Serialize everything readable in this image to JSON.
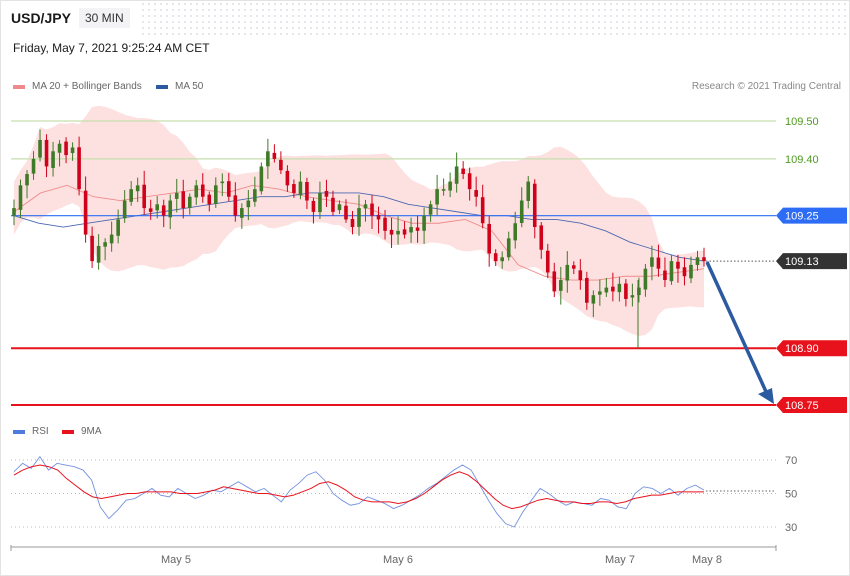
{
  "header": {
    "symbol": "USD/JPY",
    "timeframe": "30 MIN",
    "timestamp": "Friday, May 7, 2021 9:25:24 AM CET"
  },
  "legend": {
    "ma20_label": "MA 20 + Bollinger Bands",
    "ma50_label": "MA 50",
    "rsi_label": "RSI",
    "rsi_ma_label": "9MA",
    "credit": "Research © 2021 Trading Central"
  },
  "colors": {
    "up": "#3e7a27",
    "down": "#d0021b",
    "bollinger_fill": "#fde1e1",
    "ma20": "#f08a8a",
    "ma50": "#4a68b0",
    "resistance_line": "#c6dfae",
    "resistance_text": "#4f9a1f",
    "pivot": "#2d6cf5",
    "support": "#e8121c",
    "current": "#333333",
    "arrow": "#2c5aa0",
    "rsi": "#7391e0",
    "rsi_ma": "#e8121c"
  },
  "chart_data": [
    {
      "type": "candlestick",
      "y_range": [
        108.68,
        109.57
      ],
      "x_ticks": [
        "May 5",
        "May 6",
        "May 7",
        "May 8"
      ],
      "levels": [
        {
          "label": "109.50",
          "value": 109.5,
          "kind": "resistance"
        },
        {
          "label": "109.40",
          "value": 109.4,
          "kind": "resistance"
        },
        {
          "label": "109.25",
          "value": 109.25,
          "kind": "pivot"
        },
        {
          "label": "109.13",
          "value": 109.13,
          "kind": "current"
        },
        {
          "label": "108.90",
          "value": 108.9,
          "kind": "support"
        },
        {
          "label": "108.75",
          "value": 108.75,
          "kind": "support"
        }
      ],
      "close_series": [
        109.27,
        109.33,
        109.36,
        109.4,
        109.45,
        109.38,
        109.42,
        109.44,
        109.41,
        109.43,
        109.32,
        109.2,
        109.13,
        109.17,
        109.18,
        109.2,
        109.24,
        109.29,
        109.32,
        109.33,
        109.27,
        109.26,
        109.28,
        109.25,
        109.29,
        109.31,
        109.27,
        109.3,
        109.33,
        109.3,
        109.28,
        109.33,
        109.34,
        109.3,
        109.25,
        109.27,
        109.29,
        109.32,
        109.38,
        109.42,
        109.4,
        109.37,
        109.33,
        109.31,
        109.34,
        109.29,
        109.26,
        109.31,
        109.3,
        109.26,
        109.28,
        109.24,
        109.22,
        109.27,
        109.28,
        109.25,
        109.24,
        109.21,
        109.2,
        109.21,
        109.2,
        109.22,
        109.21,
        109.25,
        109.28,
        109.32,
        109.32,
        109.34,
        109.38,
        109.36,
        109.32,
        109.3,
        109.23,
        109.15,
        109.13,
        109.14,
        109.19,
        109.23,
        109.29,
        109.34,
        109.22,
        109.16,
        109.1,
        109.05,
        109.08,
        109.12,
        109.11,
        109.08,
        109.02,
        109.04,
        109.05,
        109.06,
        109.05,
        109.07,
        109.03,
        109.04,
        109.06,
        109.11,
        109.14,
        109.11,
        109.08,
        109.13,
        109.11,
        109.09,
        109.12,
        109.14,
        109.13
      ],
      "note": "Forecast arrow from 109.13 toward 108.75",
      "ma20_values": [
        109.26,
        109.31,
        109.33,
        109.3,
        109.29,
        109.3,
        109.31,
        109.32,
        109.31,
        109.33,
        109.32,
        109.3,
        109.29,
        109.28,
        109.25,
        109.23,
        109.23,
        109.24,
        109.21,
        109.12,
        109.09,
        109.08,
        109.08,
        109.09,
        109.09,
        109.1,
        109.11
      ],
      "ma50_values": [
        109.25,
        109.23,
        109.22,
        109.23,
        109.24,
        109.25,
        109.26,
        109.27,
        109.28,
        109.29,
        109.3,
        109.3,
        109.31,
        109.31,
        109.31,
        109.3,
        109.28,
        109.27,
        109.26,
        109.25,
        109.25,
        109.24,
        109.24,
        109.23,
        109.21,
        109.18,
        109.16,
        109.14,
        109.13
      ]
    },
    {
      "type": "line",
      "name": "RSI",
      "y_range": [
        25,
        75
      ],
      "y_ticks": [
        70,
        50,
        30
      ],
      "series": [
        {
          "name": "RSI",
          "values": [
            63,
            68,
            65,
            72,
            64,
            68,
            67,
            66,
            64,
            58,
            42,
            35,
            40,
            46,
            47,
            50,
            53,
            49,
            48,
            53,
            50,
            47,
            49,
            52,
            51,
            54,
            57,
            54,
            51,
            53,
            49,
            45,
            52,
            56,
            61,
            63,
            58,
            50,
            46,
            43,
            44,
            48,
            46,
            44,
            41,
            43,
            46,
            49,
            53,
            56,
            60,
            64,
            67,
            64,
            55,
            46,
            38,
            32,
            30,
            39,
            46,
            53,
            50,
            46,
            43,
            45,
            44,
            43,
            47,
            46,
            42,
            41,
            50,
            54,
            53,
            50,
            53,
            49,
            53,
            55,
            52
          ]
        },
        {
          "name": "9MA",
          "values": [
            61,
            64,
            66,
            67,
            66,
            64,
            59,
            55,
            51,
            48,
            47,
            48,
            49,
            50,
            50,
            51,
            51,
            51,
            51,
            50,
            50,
            50,
            51,
            52,
            54,
            53,
            52,
            51,
            50,
            50,
            49,
            48,
            49,
            51,
            53,
            56,
            57,
            55,
            52,
            48,
            46,
            45,
            45,
            45,
            44,
            45,
            47,
            50,
            54,
            58,
            61,
            63,
            61,
            57,
            52,
            47,
            43,
            41,
            42,
            44,
            46,
            47,
            46,
            45,
            45,
            44,
            44,
            45,
            45,
            44,
            45,
            47,
            48,
            49,
            49,
            50,
            51,
            51,
            51,
            51
          ]
        }
      ]
    }
  ]
}
